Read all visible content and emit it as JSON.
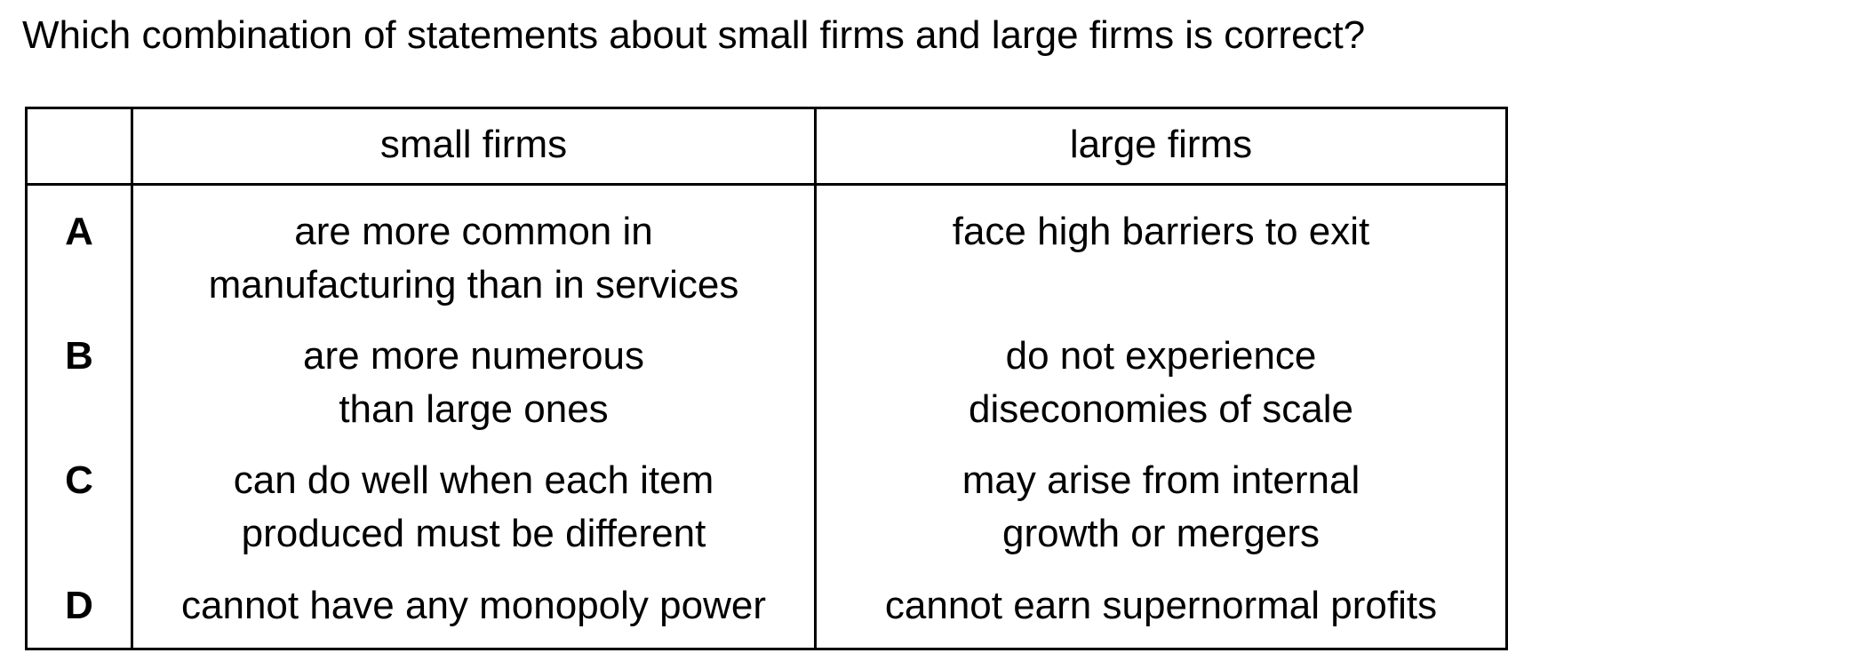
{
  "question": "Which combination of statements about small firms and large firms is correct?",
  "table": {
    "headers": {
      "blank": "",
      "small": "small firms",
      "large": "large firms"
    },
    "rows": [
      {
        "letter": "A",
        "small": [
          "are more common in",
          "manufacturing than in services"
        ],
        "large": [
          "face high barriers to exit"
        ]
      },
      {
        "letter": "B",
        "small": [
          "are more numerous",
          "than large ones"
        ],
        "large": [
          "do not experience",
          "diseconomies of scale"
        ]
      },
      {
        "letter": "C",
        "small": [
          "can do well when each item",
          "produced must be different"
        ],
        "large": [
          "may arise from internal",
          "growth or mergers"
        ]
      },
      {
        "letter": "D",
        "small": [
          "cannot have any monopoly power"
        ],
        "large": [
          "cannot earn supernormal profits"
        ]
      }
    ]
  }
}
